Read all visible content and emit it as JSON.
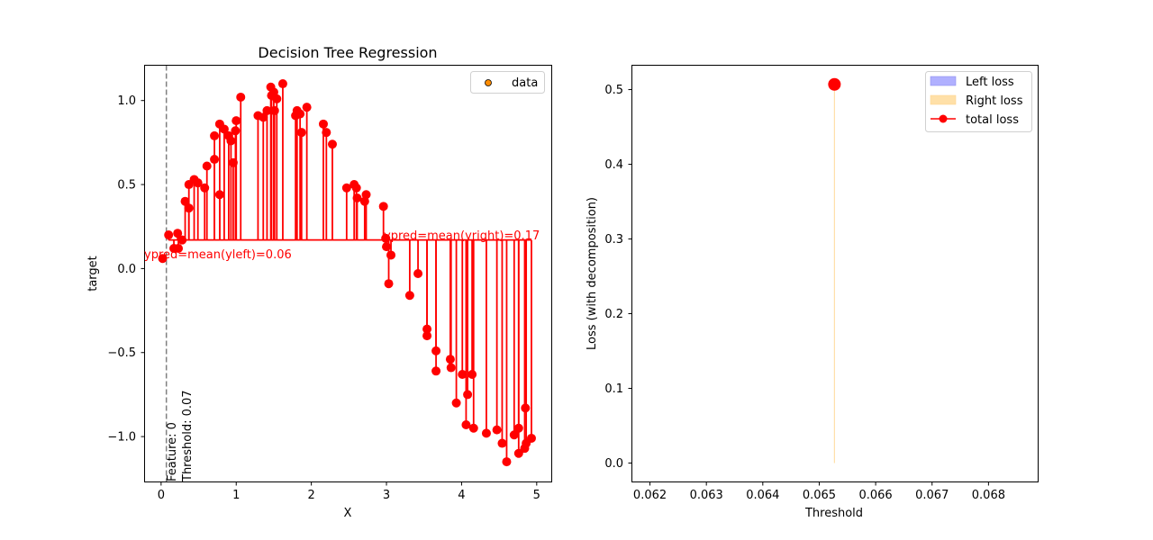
{
  "chart_data": [
    {
      "type": "scatter",
      "title": "Decision Tree Regression",
      "xlabel": "X",
      "ylabel": "target",
      "xlim": [
        -0.22,
        5.2
      ],
      "ylim": [
        -1.27,
        1.21
      ],
      "xticks": [
        0,
        1,
        2,
        3,
        4,
        5
      ],
      "xtick_labels": [
        "0",
        "1",
        "2",
        "3",
        "4",
        "5"
      ],
      "yticks": [
        1.0,
        0.5,
        0.0,
        -0.5,
        -1.0
      ],
      "ytick_labels": [
        "1.0",
        "0.5",
        "0.0",
        "−0.5",
        "−1.0"
      ],
      "legend": {
        "position": "top-right",
        "entries": [
          {
            "label": "data",
            "marker_color": "#ff8c00"
          }
        ]
      },
      "threshold": 0.07,
      "threshold_line_color": "#808080",
      "threshold_labels": [
        "Feature: 0",
        "Threshold: 0.07"
      ],
      "left_mean": 0.06,
      "right_mean": 0.17,
      "left_mean_label": "ypred=mean(yleft)=0.06",
      "right_mean_label": "ypred=mean(yright)=0.17",
      "series_color": "#ff0000",
      "points": {
        "x": [
          0.02,
          0.1,
          0.17,
          0.22,
          0.23,
          0.28,
          0.32,
          0.37,
          0.37,
          0.44,
          0.49,
          0.58,
          0.61,
          0.71,
          0.71,
          0.78,
          0.78,
          0.84,
          0.9,
          0.93,
          0.96,
          0.99,
          1.0,
          1.06,
          1.29,
          1.36,
          1.41,
          1.46,
          1.47,
          1.5,
          1.51,
          1.54,
          1.62,
          1.79,
          1.81,
          1.85,
          1.87,
          1.94,
          2.16,
          2.2,
          2.28,
          2.47,
          2.57,
          2.6,
          2.61,
          2.71,
          2.73,
          2.96,
          2.99,
          3.0,
          3.06,
          3.03,
          3.31,
          3.42,
          3.54,
          3.54,
          3.66,
          3.66,
          3.85,
          3.86,
          3.93,
          4.01,
          4.06,
          4.08,
          4.14,
          4.16,
          4.33,
          4.47,
          4.54,
          4.6,
          4.7,
          4.76,
          4.76,
          4.85,
          4.84,
          4.86,
          4.93
        ],
        "y": [
          0.06,
          0.2,
          0.12,
          0.21,
          0.12,
          0.17,
          0.4,
          0.36,
          0.5,
          0.53,
          0.51,
          0.48,
          0.61,
          0.65,
          0.79,
          0.44,
          0.86,
          0.83,
          0.79,
          0.76,
          0.63,
          0.82,
          0.88,
          1.02,
          0.91,
          0.9,
          0.94,
          1.08,
          1.03,
          1.05,
          0.94,
          1.01,
          1.1,
          0.91,
          0.94,
          0.92,
          0.81,
          0.96,
          0.86,
          0.81,
          0.74,
          0.48,
          0.5,
          0.48,
          0.42,
          0.4,
          0.44,
          0.37,
          0.18,
          0.13,
          0.08,
          -0.09,
          -0.16,
          -0.03,
          -0.4,
          -0.36,
          -0.49,
          -0.61,
          -0.54,
          -0.59,
          -0.8,
          -0.63,
          -0.93,
          -0.75,
          -0.63,
          -0.95,
          -0.98,
          -0.96,
          -1.04,
          -1.15,
          -0.99,
          -0.95,
          -1.1,
          -0.83,
          -1.07,
          -1.04,
          -1.01
        ]
      }
    },
    {
      "type": "line",
      "title": "",
      "xlabel": "Threshold",
      "ylabel": "Loss (with decomposition)",
      "xlim": [
        0.06168,
        0.06888
      ],
      "ylim": [
        -0.0253,
        0.5326
      ],
      "xticks": [
        0.062,
        0.063,
        0.064,
        0.065,
        0.066,
        0.067,
        0.068
      ],
      "xtick_labels": [
        "0.062",
        "0.063",
        "0.064",
        "0.065",
        "0.066",
        "0.067",
        "0.068"
      ],
      "yticks": [
        0.0,
        0.1,
        0.2,
        0.3,
        0.4,
        0.5
      ],
      "ytick_labels": [
        "0.0",
        "0.1",
        "0.2",
        "0.3",
        "0.4",
        "0.5"
      ],
      "legend": {
        "position": "top-right",
        "entries": [
          {
            "label": "Left loss",
            "color": "#b0b0ff"
          },
          {
            "label": "Right loss",
            "color": "#ffe0a8"
          },
          {
            "label": "total loss",
            "color": "#ff0000"
          }
        ]
      },
      "series": [
        {
          "name": "Right loss",
          "x": [
            0.06527
          ],
          "y0": [
            0.0
          ],
          "y1": [
            0.507
          ]
        },
        {
          "name": "total loss",
          "x": [
            0.06527
          ],
          "y": [
            0.507
          ]
        }
      ]
    }
  ]
}
